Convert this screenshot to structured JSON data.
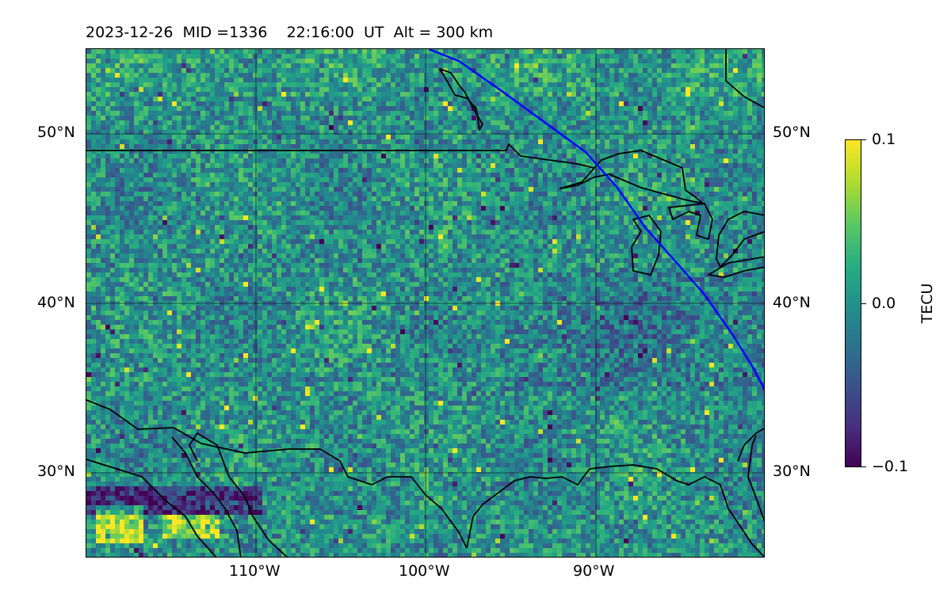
{
  "title": "2023-12-26  MID =1336    22:16:00  UT  Alt = 300 km",
  "map": {
    "lon_range": [
      -120,
      -80
    ],
    "lat_range": [
      25,
      55
    ],
    "lon_gridlines": [
      -110,
      -100,
      -90
    ],
    "lat_gridlines": [
      30,
      40,
      50
    ],
    "lon_tick_labels": [
      "110°W",
      "100°W",
      "90°W"
    ],
    "lat_tick_labels": [
      "30°N",
      "40°N",
      "50°N"
    ],
    "coastline_color": "#000000",
    "terminator_color": "#0000ff"
  },
  "colorbar": {
    "label": "TECU",
    "colormap": "viridis",
    "min": -0.1,
    "max": 0.1,
    "ticks": [
      {
        "value": 0.1,
        "label": "0.1"
      },
      {
        "value": 0.0,
        "label": "0.0"
      },
      {
        "value": -0.1,
        "label": "−0.1"
      }
    ]
  }
}
